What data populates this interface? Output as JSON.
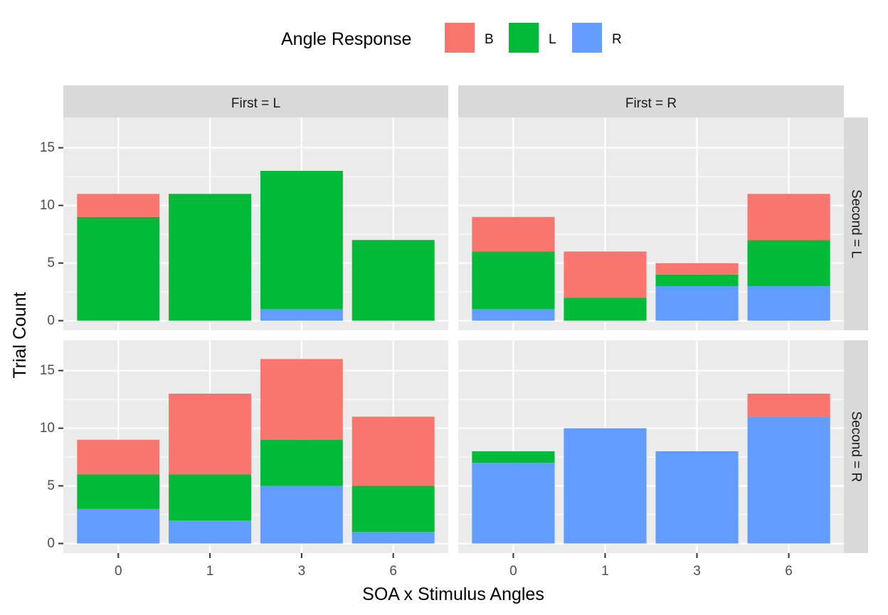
{
  "chart_data": {
    "type": "bar",
    "stacked": true,
    "xlabel": "SOA x Stimulus Angles",
    "ylabel": "Trial Count",
    "ylim": [
      0,
      16.8
    ],
    "y_ticks": [
      0,
      5,
      10,
      15
    ],
    "grid": true,
    "legend": {
      "title": "Angle Response",
      "position": "top",
      "entries": [
        {
          "name": "B",
          "color": "#F8766D"
        },
        {
          "name": "L",
          "color": "#00BA38"
        },
        {
          "name": "R",
          "color": "#619CFF"
        }
      ]
    },
    "categories": [
      "0",
      "1",
      "3",
      "6"
    ],
    "stack_order_bottom_to_top": [
      "R",
      "L",
      "B"
    ],
    "facet_columns": [
      "First = L",
      "First = R"
    ],
    "facet_rows": [
      "Second = L",
      "Second = R"
    ],
    "panels": [
      {
        "col": 0,
        "row": 0,
        "series": [
          {
            "name": "R",
            "values": [
              0,
              0,
              1,
              0
            ]
          },
          {
            "name": "L",
            "values": [
              9,
              11,
              12,
              7
            ]
          },
          {
            "name": "B",
            "values": [
              2,
              0,
              0,
              0
            ]
          }
        ]
      },
      {
        "col": 1,
        "row": 0,
        "series": [
          {
            "name": "R",
            "values": [
              1,
              0,
              3,
              3
            ]
          },
          {
            "name": "L",
            "values": [
              5,
              2,
              1,
              4
            ]
          },
          {
            "name": "B",
            "values": [
              3,
              4,
              1,
              4
            ]
          }
        ]
      },
      {
        "col": 0,
        "row": 1,
        "series": [
          {
            "name": "R",
            "values": [
              3,
              2,
              5,
              1
            ]
          },
          {
            "name": "L",
            "values": [
              3,
              4,
              4,
              4
            ]
          },
          {
            "name": "B",
            "values": [
              3,
              7,
              7,
              6
            ]
          }
        ]
      },
      {
        "col": 1,
        "row": 1,
        "series": [
          {
            "name": "R",
            "values": [
              7,
              10,
              8,
              11
            ]
          },
          {
            "name": "L",
            "values": [
              1,
              0,
              0,
              0
            ]
          },
          {
            "name": "B",
            "values": [
              0,
              0,
              0,
              2
            ]
          }
        ]
      }
    ]
  }
}
